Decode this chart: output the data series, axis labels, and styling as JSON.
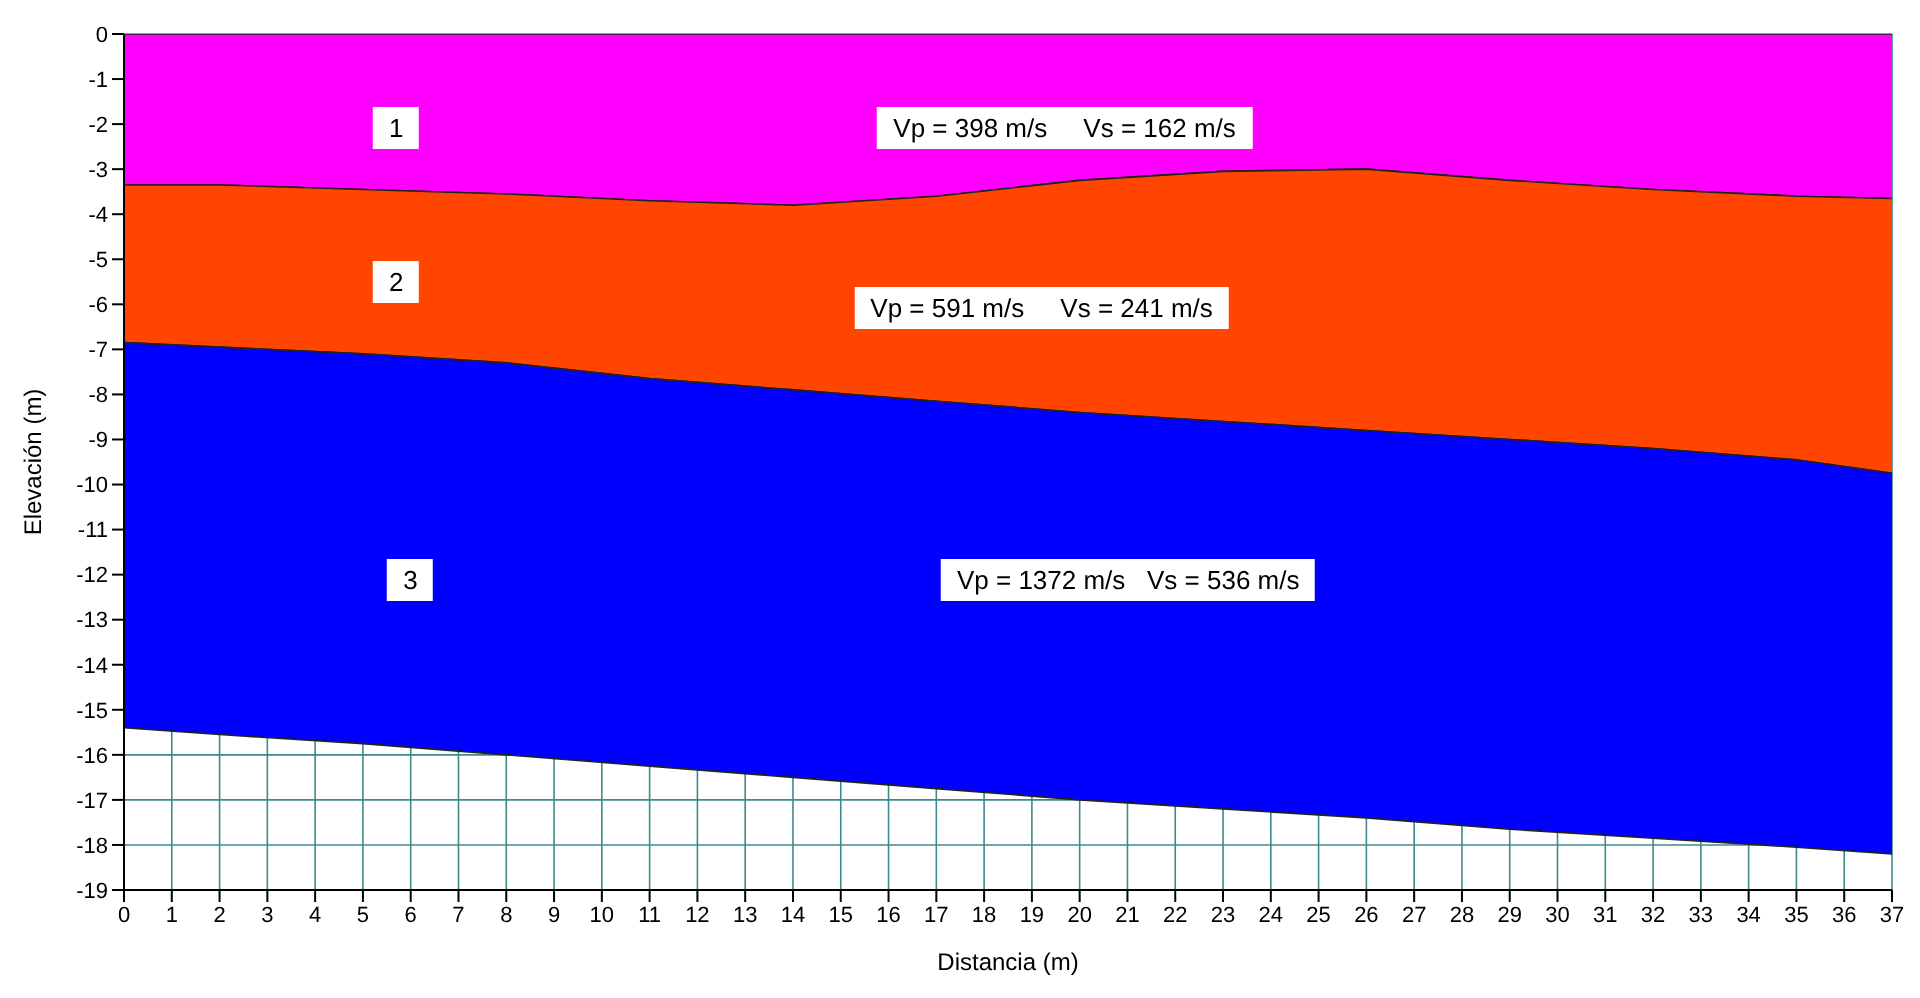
{
  "chart_data": {
    "type": "area",
    "xlabel": "Distancia (m)",
    "ylabel": "Elevación (m)",
    "x": [
      0,
      2,
      5,
      8,
      11,
      14,
      17,
      20,
      23,
      26,
      29,
      32,
      35,
      37
    ],
    "series": [
      {
        "color": "#ff00ff",
        "values": [
          -3.35,
          -3.35,
          -3.45,
          -3.55,
          -3.7,
          -3.8,
          -3.6,
          -3.25,
          -3.05,
          -3.0,
          -3.25,
          -3.45,
          -3.6,
          -3.65
        ]
      },
      {
        "color": "#ff4500",
        "values": [
          -6.85,
          -6.95,
          -7.1,
          -7.3,
          -7.65,
          -7.9,
          -8.15,
          -8.4,
          -8.6,
          -8.8,
          -9.0,
          -9.2,
          -9.45,
          -9.75
        ]
      },
      {
        "color": "#0000ff",
        "values": [
          -15.4,
          -15.55,
          -15.75,
          -16.0,
          -16.25,
          -16.5,
          -16.75,
          -17.0,
          -17.2,
          -17.4,
          -17.65,
          -17.85,
          -18.05,
          -18.2
        ]
      }
    ],
    "xlim": [
      0,
      37
    ],
    "xticks": [
      0,
      1,
      2,
      3,
      4,
      5,
      6,
      7,
      8,
      9,
      10,
      11,
      12,
      13,
      14,
      15,
      16,
      17,
      18,
      19,
      20,
      21,
      22,
      23,
      24,
      25,
      26,
      27,
      28,
      29,
      30,
      31,
      32,
      33,
      34,
      35,
      36,
      37
    ],
    "ylim": [
      -19,
      0
    ],
    "yticks": [
      0,
      -1,
      -2,
      -3,
      -4,
      -5,
      -6,
      -7,
      -8,
      -9,
      -10,
      -11,
      -12,
      -13,
      -14,
      -15,
      -16,
      -17,
      -18,
      -19
    ],
    "grid": true,
    "legend": false,
    "annotations": [
      "1",
      "Vp = 398 m/s     Vs = 162 m/s",
      "2",
      "Vp = 591 m/s     Vs = 241 m/s",
      "3",
      "Vp = 1372 m/s   Vs = 536 m/s"
    ]
  }
}
